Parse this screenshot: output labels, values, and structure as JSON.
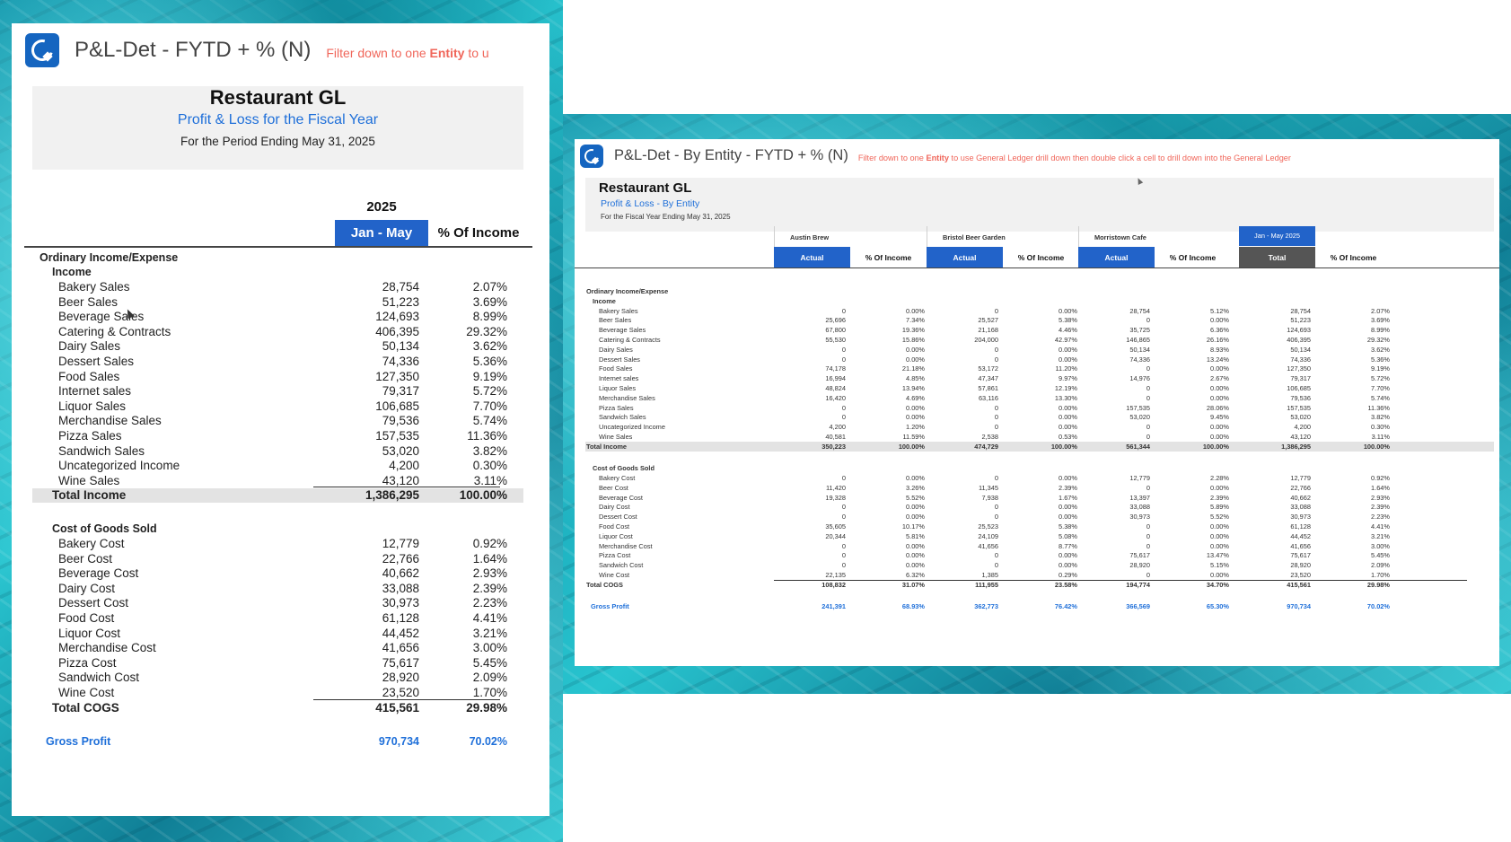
{
  "left": {
    "title": "P&L-Det - FYTD + % (N)",
    "hint": {
      "pre": "Filter down to one ",
      "bold": "Entity",
      "post": " to u"
    },
    "report_title": "Restaurant GL",
    "report_subtitle": "Profit & Loss for the Fiscal Year",
    "period": "For the Period Ending May 31, 2025",
    "year": "2025",
    "col1": "Jan - May",
    "col2": "% Of Income",
    "section": "Ordinary Income/Expense",
    "income_label": "Income",
    "income": [
      {
        "label": "Bakery Sales",
        "value": "28,754",
        "pct": "2.07%"
      },
      {
        "label": "Beer Sales",
        "value": "51,223",
        "pct": "3.69%"
      },
      {
        "label": "Beverage Sales",
        "value": "124,693",
        "pct": "8.99%"
      },
      {
        "label": "Catering & Contracts",
        "value": "406,395",
        "pct": "29.32%"
      },
      {
        "label": "Dairy Sales",
        "value": "50,134",
        "pct": "3.62%"
      },
      {
        "label": "Dessert Sales",
        "value": "74,336",
        "pct": "5.36%"
      },
      {
        "label": "Food Sales",
        "value": "127,350",
        "pct": "9.19%"
      },
      {
        "label": "Internet sales",
        "value": "79,317",
        "pct": "5.72%"
      },
      {
        "label": "Liquor Sales",
        "value": "106,685",
        "pct": "7.70%"
      },
      {
        "label": "Merchandise Sales",
        "value": "79,536",
        "pct": "5.74%"
      },
      {
        "label": "Pizza Sales",
        "value": "157,535",
        "pct": "11.36%"
      },
      {
        "label": "Sandwich Sales",
        "value": "53,020",
        "pct": "3.82%"
      },
      {
        "label": "Uncategorized Income",
        "value": "4,200",
        "pct": "0.30%"
      },
      {
        "label": "Wine Sales",
        "value": "43,120",
        "pct": "3.11%"
      }
    ],
    "total_income": {
      "label": "Total Income",
      "value": "1,386,295",
      "pct": "100.00%"
    },
    "cogs_label": "Cost of Goods Sold",
    "cogs": [
      {
        "label": "Bakery Cost",
        "value": "12,779",
        "pct": "0.92%"
      },
      {
        "label": "Beer Cost",
        "value": "22,766",
        "pct": "1.64%"
      },
      {
        "label": "Beverage Cost",
        "value": "40,662",
        "pct": "2.93%"
      },
      {
        "label": "Dairy Cost",
        "value": "33,088",
        "pct": "2.39%"
      },
      {
        "label": "Dessert Cost",
        "value": "30,973",
        "pct": "2.23%"
      },
      {
        "label": "Food Cost",
        "value": "61,128",
        "pct": "4.41%"
      },
      {
        "label": "Liquor Cost",
        "value": "44,452",
        "pct": "3.21%"
      },
      {
        "label": "Merchandise Cost",
        "value": "41,656",
        "pct": "3.00%"
      },
      {
        "label": "Pizza Cost",
        "value": "75,617",
        "pct": "5.45%"
      },
      {
        "label": "Sandwich Cost",
        "value": "28,920",
        "pct": "2.09%"
      },
      {
        "label": "Wine Cost",
        "value": "23,520",
        "pct": "1.70%"
      }
    ],
    "total_cogs": {
      "label": "Total COGS",
      "value": "415,561",
      "pct": "29.98%"
    },
    "gross_profit": {
      "label": "Gross Profit",
      "value": "970,734",
      "pct": "70.02%"
    }
  },
  "right": {
    "title": "P&L-Det - By Entity - FYTD + % (N)",
    "hint": {
      "pre": "Filter down to one ",
      "bold": "Entity",
      "post": " to use General Ledger drill down then double click a cell to drill down into the General Ledger"
    },
    "report_title": "Restaurant GL",
    "report_subtitle": "Profit & Loss - By Entity",
    "period": "For the Fiscal Year Ending May 31, 2025",
    "entities": [
      "Austin Brew",
      "Bristol Beer Garden",
      "Morristown Cafe"
    ],
    "total_group": "Jan - May 2025",
    "actual_label": "Actual",
    "pct_label": "% Of Income",
    "total_label": "Total",
    "section": "Ordinary Income/Expense",
    "income_label": "Income",
    "income": [
      {
        "label": "Bakery Sales",
        "v": [
          "0",
          "0.00%",
          "0",
          "0.00%",
          "28,754",
          "5.12%",
          "28,754",
          "2.07%"
        ]
      },
      {
        "label": "Beer Sales",
        "v": [
          "25,696",
          "7.34%",
          "25,527",
          "5.38%",
          "0",
          "0.00%",
          "51,223",
          "3.69%"
        ]
      },
      {
        "label": "Beverage Sales",
        "v": [
          "67,800",
          "19.36%",
          "21,168",
          "4.46%",
          "35,725",
          "6.36%",
          "124,693",
          "8.99%"
        ]
      },
      {
        "label": "Catering & Contracts",
        "v": [
          "55,530",
          "15.86%",
          "204,000",
          "42.97%",
          "146,865",
          "26.16%",
          "406,395",
          "29.32%"
        ]
      },
      {
        "label": "Dairy Sales",
        "v": [
          "0",
          "0.00%",
          "0",
          "0.00%",
          "50,134",
          "8.93%",
          "50,134",
          "3.62%"
        ]
      },
      {
        "label": "Dessert Sales",
        "v": [
          "0",
          "0.00%",
          "0",
          "0.00%",
          "74,336",
          "13.24%",
          "74,336",
          "5.36%"
        ]
      },
      {
        "label": "Food Sales",
        "v": [
          "74,178",
          "21.18%",
          "53,172",
          "11.20%",
          "0",
          "0.00%",
          "127,350",
          "9.19%"
        ]
      },
      {
        "label": "Internet sales",
        "v": [
          "16,994",
          "4.85%",
          "47,347",
          "9.97%",
          "14,976",
          "2.67%",
          "79,317",
          "5.72%"
        ]
      },
      {
        "label": "Liquor Sales",
        "v": [
          "48,824",
          "13.94%",
          "57,861",
          "12.19%",
          "0",
          "0.00%",
          "106,685",
          "7.70%"
        ]
      },
      {
        "label": "Merchandise Sales",
        "v": [
          "16,420",
          "4.69%",
          "63,116",
          "13.30%",
          "0",
          "0.00%",
          "79,536",
          "5.74%"
        ]
      },
      {
        "label": "Pizza Sales",
        "v": [
          "0",
          "0.00%",
          "0",
          "0.00%",
          "157,535",
          "28.06%",
          "157,535",
          "11.36%"
        ]
      },
      {
        "label": "Sandwich Sales",
        "v": [
          "0",
          "0.00%",
          "0",
          "0.00%",
          "53,020",
          "9.45%",
          "53,020",
          "3.82%"
        ]
      },
      {
        "label": "Uncategorized Income",
        "v": [
          "4,200",
          "1.20%",
          "0",
          "0.00%",
          "0",
          "0.00%",
          "4,200",
          "0.30%"
        ]
      },
      {
        "label": "Wine Sales",
        "v": [
          "40,581",
          "11.59%",
          "2,538",
          "0.53%",
          "0",
          "0.00%",
          "43,120",
          "3.11%"
        ]
      }
    ],
    "total_income": {
      "label": "Total Income",
      "v": [
        "350,223",
        "100.00%",
        "474,729",
        "100.00%",
        "561,344",
        "100.00%",
        "1,386,295",
        "100.00%"
      ]
    },
    "cogs_label": "Cost of Goods Sold",
    "cogs": [
      {
        "label": "Bakery Cost",
        "v": [
          "0",
          "0.00%",
          "0",
          "0.00%",
          "12,779",
          "2.28%",
          "12,779",
          "0.92%"
        ]
      },
      {
        "label": "Beer Cost",
        "v": [
          "11,420",
          "3.26%",
          "11,345",
          "2.39%",
          "0",
          "0.00%",
          "22,766",
          "1.64%"
        ]
      },
      {
        "label": "Beverage Cost",
        "v": [
          "19,328",
          "5.52%",
          "7,938",
          "1.67%",
          "13,397",
          "2.39%",
          "40,662",
          "2.93%"
        ]
      },
      {
        "label": "Dairy Cost",
        "v": [
          "0",
          "0.00%",
          "0",
          "0.00%",
          "33,088",
          "5.89%",
          "33,088",
          "2.39%"
        ]
      },
      {
        "label": "Dessert Cost",
        "v": [
          "0",
          "0.00%",
          "0",
          "0.00%",
          "30,973",
          "5.52%",
          "30,973",
          "2.23%"
        ]
      },
      {
        "label": "Food Cost",
        "v": [
          "35,605",
          "10.17%",
          "25,523",
          "5.38%",
          "0",
          "0.00%",
          "61,128",
          "4.41%"
        ]
      },
      {
        "label": "Liquor Cost",
        "v": [
          "20,344",
          "5.81%",
          "24,109",
          "5.08%",
          "0",
          "0.00%",
          "44,452",
          "3.21%"
        ]
      },
      {
        "label": "Merchandise Cost",
        "v": [
          "0",
          "0.00%",
          "41,656",
          "8.77%",
          "0",
          "0.00%",
          "41,656",
          "3.00%"
        ]
      },
      {
        "label": "Pizza Cost",
        "v": [
          "0",
          "0.00%",
          "0",
          "0.00%",
          "75,617",
          "13.47%",
          "75,617",
          "5.45%"
        ]
      },
      {
        "label": "Sandwich Cost",
        "v": [
          "0",
          "0.00%",
          "0",
          "0.00%",
          "28,920",
          "5.15%",
          "28,920",
          "2.09%"
        ]
      },
      {
        "label": "Wine Cost",
        "v": [
          "22,135",
          "6.32%",
          "1,385",
          "0.29%",
          "0",
          "0.00%",
          "23,520",
          "1.70%"
        ]
      }
    ],
    "total_cogs": {
      "label": "Total COGS",
      "v": [
        "108,832",
        "31.07%",
        "111,955",
        "23.58%",
        "194,774",
        "34.70%",
        "415,561",
        "29.98%"
      ]
    },
    "gross_profit": {
      "label": "Gross Profit",
      "v": [
        "241,391",
        "68.93%",
        "362,773",
        "76.42%",
        "366,569",
        "65.30%",
        "970,734",
        "70.02%"
      ]
    }
  },
  "colors": {
    "header_blue": "#2263c9",
    "total_gray": "#555555",
    "link_blue": "#1e6fd9",
    "hint_red": "#f0665a",
    "logo_blue": "#1565c0"
  },
  "icons": [
    "app-logo-icon",
    "mouse-cursor-icon"
  ]
}
